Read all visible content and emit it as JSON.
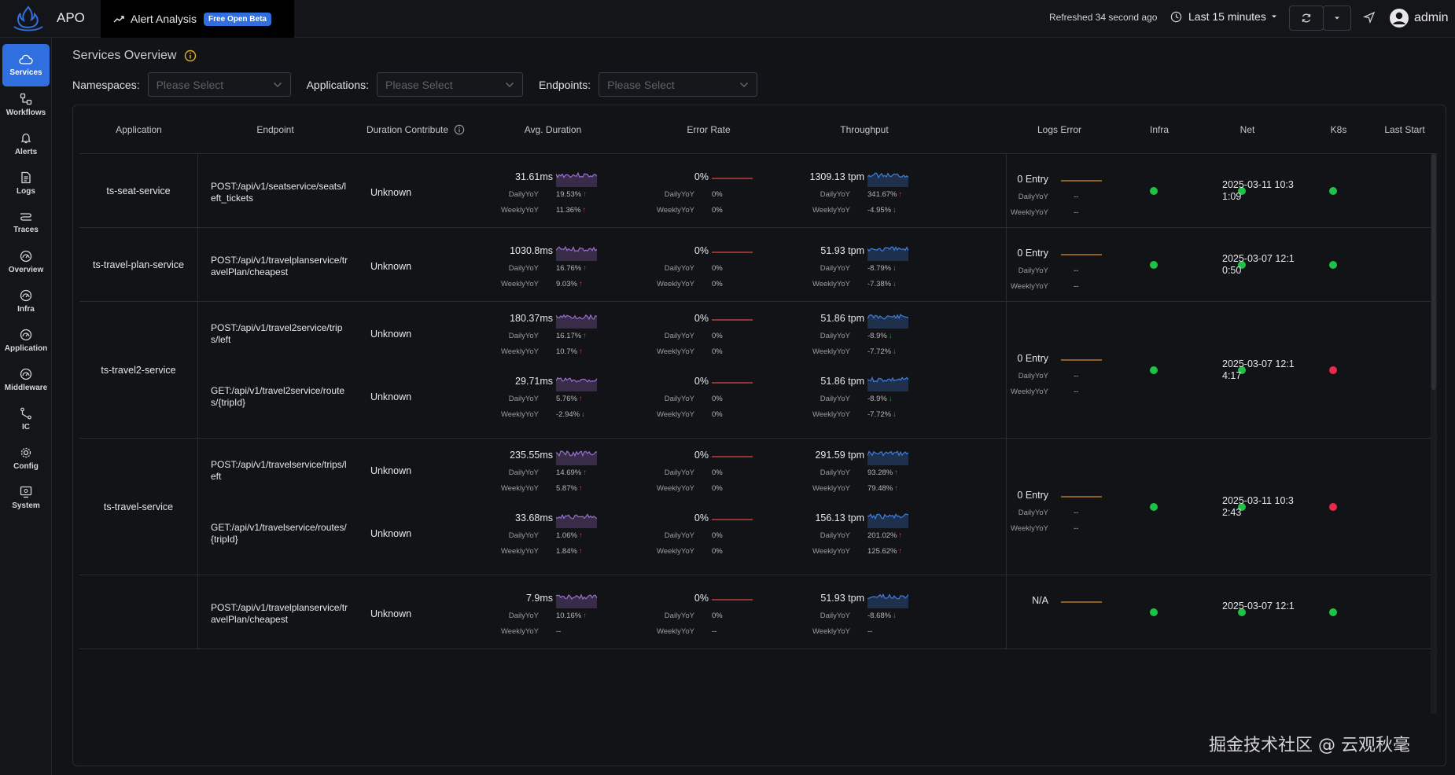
{
  "header": {
    "app_name": "APO",
    "alert_analysis": "Alert Analysis",
    "beta_badge": "Free Open Beta",
    "refreshed": "Refreshed 34 second ago",
    "time_range": "Last 15 minutes",
    "user": "admin"
  },
  "sidebar": {
    "items": [
      {
        "label": "Services",
        "icon": "cloud-icon",
        "active": true
      },
      {
        "label": "Workflows",
        "icon": "workflow-icon"
      },
      {
        "label": "Alerts",
        "icon": "bell-icon"
      },
      {
        "label": "Logs",
        "icon": "document-icon"
      },
      {
        "label": "Traces",
        "icon": "trace-icon"
      },
      {
        "label": "Overview",
        "icon": "dashboard-icon"
      },
      {
        "label": "Infra",
        "icon": "gauge-icon"
      },
      {
        "label": "Application",
        "icon": "gauge-icon"
      },
      {
        "label": "Middleware",
        "icon": "gauge-icon"
      },
      {
        "label": "IC",
        "icon": "branch-icon"
      },
      {
        "label": "Config",
        "icon": "gear-icon"
      },
      {
        "label": "System",
        "icon": "monitor-icon"
      }
    ]
  },
  "page": {
    "title": "Services Overview"
  },
  "filters": {
    "namespaces_label": "Namespaces:",
    "applications_label": "Applications:",
    "endpoints_label": "Endpoints:",
    "placeholder": "Please Select"
  },
  "table": {
    "headers": {
      "application": "Application",
      "endpoint": "Endpoint",
      "duration_contribution": "Duration Contribute",
      "avg_duration": "Avg. Duration",
      "error_rate": "Error Rate",
      "throughput": "Throughput",
      "logs_error": "Logs Error",
      "infra": "Infra",
      "net": "Net",
      "k8s": "K8s",
      "last_start": "Last Start"
    },
    "labels": {
      "daily": "DailyYoY",
      "weekly": "WeeklyYoY"
    },
    "colors": {
      "green": "#1fc246",
      "red": "#ea2a4a",
      "accent": "#2f6fe0",
      "duration_spark": "#9a6fd0",
      "throughput_spark": "#3f7fe0",
      "error_line": "#e04a4a",
      "log_line": "#d98a2b"
    },
    "rows": [
      {
        "application": "ts-seat-service",
        "logs": {
          "value": "0 Entry",
          "daily": "--",
          "weekly": "--"
        },
        "infra": "green",
        "net": "green",
        "k8s": "green",
        "last_start": "2025-03-11 10:31:09",
        "endpoints": [
          {
            "endpoint": "POST:/api/v1/seatservice/seats/left_tickets",
            "contribution": "Unknown",
            "duration": {
              "value": "31.61ms",
              "daily": "19.53%",
              "daily_dir": "up",
              "weekly": "11.36%",
              "weekly_dir": "up"
            },
            "error": {
              "value": "0%",
              "daily": "0%",
              "weekly": "0%"
            },
            "throughput": {
              "value": "1309.13 tpm",
              "daily": "341.67%",
              "daily_dir": "up",
              "weekly": "-4.95%",
              "weekly_dir": "down"
            }
          }
        ]
      },
      {
        "application": "ts-travel-plan-service",
        "logs": {
          "value": "0 Entry",
          "daily": "--",
          "weekly": "--"
        },
        "infra": "green",
        "net": "green",
        "k8s": "green",
        "last_start": "2025-03-07 12:10:50",
        "endpoints": [
          {
            "endpoint": "POST:/api/v1/travelplanservice/travelPlan/cheapest",
            "contribution": "Unknown",
            "duration": {
              "value": "1030.8ms",
              "daily": "16.76%",
              "daily_dir": "up",
              "weekly": "9.03%",
              "weekly_dir": "up"
            },
            "error": {
              "value": "0%",
              "daily": "0%",
              "weekly": "0%"
            },
            "throughput": {
              "value": "51.93 tpm",
              "daily": "-8.79%",
              "daily_dir": "down",
              "weekly": "-7.38%",
              "weekly_dir": "down"
            }
          }
        ]
      },
      {
        "application": "ts-travel2-service",
        "logs": {
          "value": "0 Entry",
          "daily": "--",
          "weekly": "--"
        },
        "infra": "green",
        "net": "green",
        "k8s": "red",
        "last_start": "2025-03-07 12:14:17",
        "endpoints": [
          {
            "endpoint": "POST:/api/v1/travel2service/trips/left",
            "contribution": "Unknown",
            "duration": {
              "value": "180.37ms",
              "daily": "16.17%",
              "daily_dir": "up",
              "weekly": "10.7%",
              "weekly_dir": "up"
            },
            "error": {
              "value": "0%",
              "daily": "0%",
              "weekly": "0%"
            },
            "throughput": {
              "value": "51.86 tpm",
              "daily": "-8.9%",
              "daily_dir": "down",
              "weekly": "-7.72%",
              "weekly_dir": "down"
            }
          },
          {
            "endpoint": "GET:/api/v1/travel2service/routes/{tripId}",
            "contribution": "Unknown",
            "duration": {
              "value": "29.71ms",
              "daily": "5.76%",
              "daily_dir": "up",
              "weekly": "-2.94%",
              "weekly_dir": "down"
            },
            "error": {
              "value": "0%",
              "daily": "0%",
              "weekly": "0%"
            },
            "throughput": {
              "value": "51.86 tpm",
              "daily": "-8.9%",
              "daily_dir": "down",
              "weekly": "-7.72%",
              "weekly_dir": "down"
            }
          }
        ]
      },
      {
        "application": "ts-travel-service",
        "logs": {
          "value": "0 Entry",
          "daily": "--",
          "weekly": "--"
        },
        "infra": "green",
        "net": "green",
        "k8s": "red",
        "last_start": "2025-03-11 10:32:43",
        "endpoints": [
          {
            "endpoint": "POST:/api/v1/travelservice/trips/left",
            "contribution": "Unknown",
            "duration": {
              "value": "235.55ms",
              "daily": "14.69%",
              "daily_dir": "up",
              "weekly": "5.87%",
              "weekly_dir": "up"
            },
            "error": {
              "value": "0%",
              "daily": "0%",
              "weekly": "0%"
            },
            "throughput": {
              "value": "291.59 tpm",
              "daily": "93.28%",
              "daily_dir": "up",
              "weekly": "79.48%",
              "weekly_dir": "up"
            }
          },
          {
            "endpoint": "GET:/api/v1/travelservice/routes/{tripId}",
            "contribution": "Unknown",
            "duration": {
              "value": "33.68ms",
              "daily": "1.06%",
              "daily_dir": "up",
              "weekly": "1.84%",
              "weekly_dir": "up"
            },
            "error": {
              "value": "0%",
              "daily": "0%",
              "weekly": "0%"
            },
            "throughput": {
              "value": "156.13 tpm",
              "daily": "201.02%",
              "daily_dir": "up",
              "weekly": "125.62%",
              "weekly_dir": "up"
            }
          }
        ]
      },
      {
        "application": "",
        "logs": {
          "value": "N/A",
          "daily": "",
          "weekly": ""
        },
        "infra": "green",
        "net": "green",
        "k8s": "green",
        "last_start": "2025-03-07 12:1",
        "endpoints": [
          {
            "endpoint": "POST:/api/v1/travelplanservice/travelPlan/cheapest",
            "contribution": "Unknown",
            "duration": {
              "value": "7.9ms",
              "daily": "10.16%",
              "daily_dir": "up",
              "weekly": "--",
              "weekly_dir": ""
            },
            "error": {
              "value": "0%",
              "daily": "0%",
              "weekly": "--"
            },
            "throughput": {
              "value": "51.93 tpm",
              "daily": "-8.68%",
              "daily_dir": "down",
              "weekly": "--",
              "weekly_dir": ""
            }
          }
        ]
      }
    ]
  },
  "watermark": "掘金技术社区 @ 云观秋毫"
}
